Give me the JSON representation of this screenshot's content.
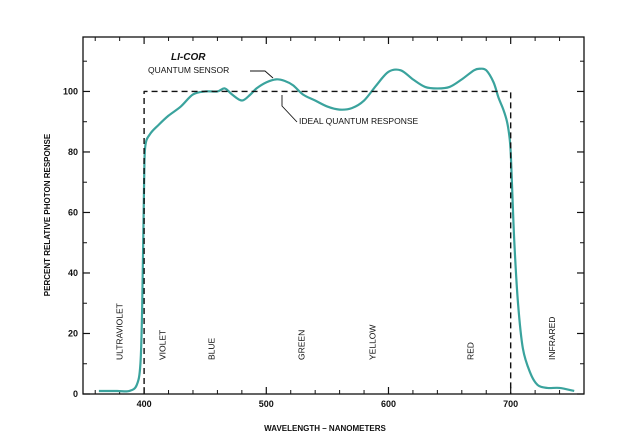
{
  "chart_data": {
    "type": "line",
    "xlabel": "WAVELENGTH – NANOMETERS",
    "ylabel": "PERCENT RELATIVE PHOTON RESPONSE",
    "xlim": [
      350,
      760
    ],
    "ylim": [
      0,
      118
    ],
    "x_ticks": [
      400,
      500,
      600,
      700
    ],
    "y_ticks": [
      0,
      20,
      40,
      60,
      80,
      100
    ],
    "grid": false,
    "series": [
      {
        "name": "QUANTUM SENSOR",
        "style": "solid",
        "color": "#3aa39d",
        "x": [
          363,
          378,
          388,
          394,
          397,
          398.5,
          400,
          401,
          405,
          412,
          420,
          430,
          440,
          450,
          460,
          466,
          472,
          480,
          487,
          492,
          500,
          508,
          515,
          522,
          530,
          540,
          550,
          560,
          570,
          580,
          590,
          600,
          610,
          620,
          630,
          640,
          650,
          660,
          670,
          675,
          680,
          686,
          690,
          694,
          697,
          699,
          700,
          701,
          703,
          706,
          710,
          716,
          722,
          730,
          740,
          752
        ],
        "y": [
          1,
          1,
          1,
          3,
          10,
          30,
          70,
          82,
          86,
          89,
          92,
          95,
          99,
          100,
          100,
          101,
          99,
          97,
          99,
          101,
          103,
          104,
          103.5,
          102,
          99,
          97,
          95,
          94,
          94.5,
          97,
          102,
          106.5,
          107,
          104,
          101.5,
          101,
          101.5,
          104,
          107,
          107.5,
          107,
          103,
          98,
          94,
          90,
          85,
          80,
          70,
          50,
          30,
          15,
          7,
          3,
          2,
          2,
          1
        ]
      },
      {
        "name": "IDEAL QUANTUM RESPONSE",
        "style": "dashed",
        "color": "#111111",
        "x": [
          400,
          400,
          700,
          700
        ],
        "y": [
          0,
          100,
          100,
          0
        ]
      }
    ],
    "annotations": {
      "brand": "LI-COR",
      "sensor": "QUANTUM SENSOR",
      "ideal": "IDEAL QUANTUM RESPONSE"
    },
    "bands": [
      {
        "label": "ULTRAVIOLET",
        "x": 380
      },
      {
        "label": "VIOLET",
        "x": 415
      },
      {
        "label": "BLUE",
        "x": 455
      },
      {
        "label": "GREEN",
        "x": 529
      },
      {
        "label": "YELLOW",
        "x": 587
      },
      {
        "label": "RED",
        "x": 667
      },
      {
        "label": "INFRARED",
        "x": 734
      }
    ]
  }
}
